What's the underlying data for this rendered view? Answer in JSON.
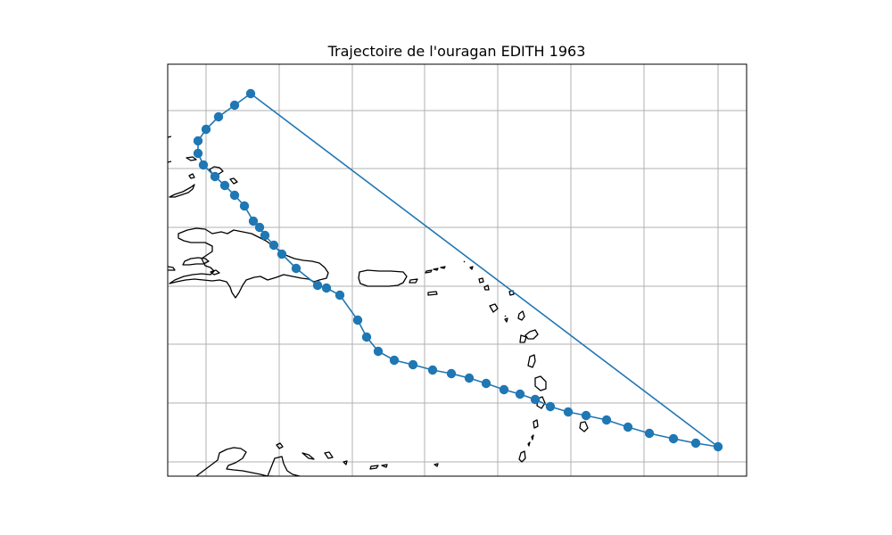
{
  "title": "Trajectoire de l'ouragan EDITH 1963",
  "colors": {
    "track": "#1f77b4",
    "grid": "#b0b0b0",
    "coastline": "#000000",
    "background": "#ffffff"
  },
  "map_data": {
    "type": "track-map",
    "grid": true,
    "storm": "EDITH",
    "year": "1963",
    "track_points_count": 43,
    "features": [
      "coastline",
      "graticule",
      "track-line",
      "track-points"
    ]
  }
}
